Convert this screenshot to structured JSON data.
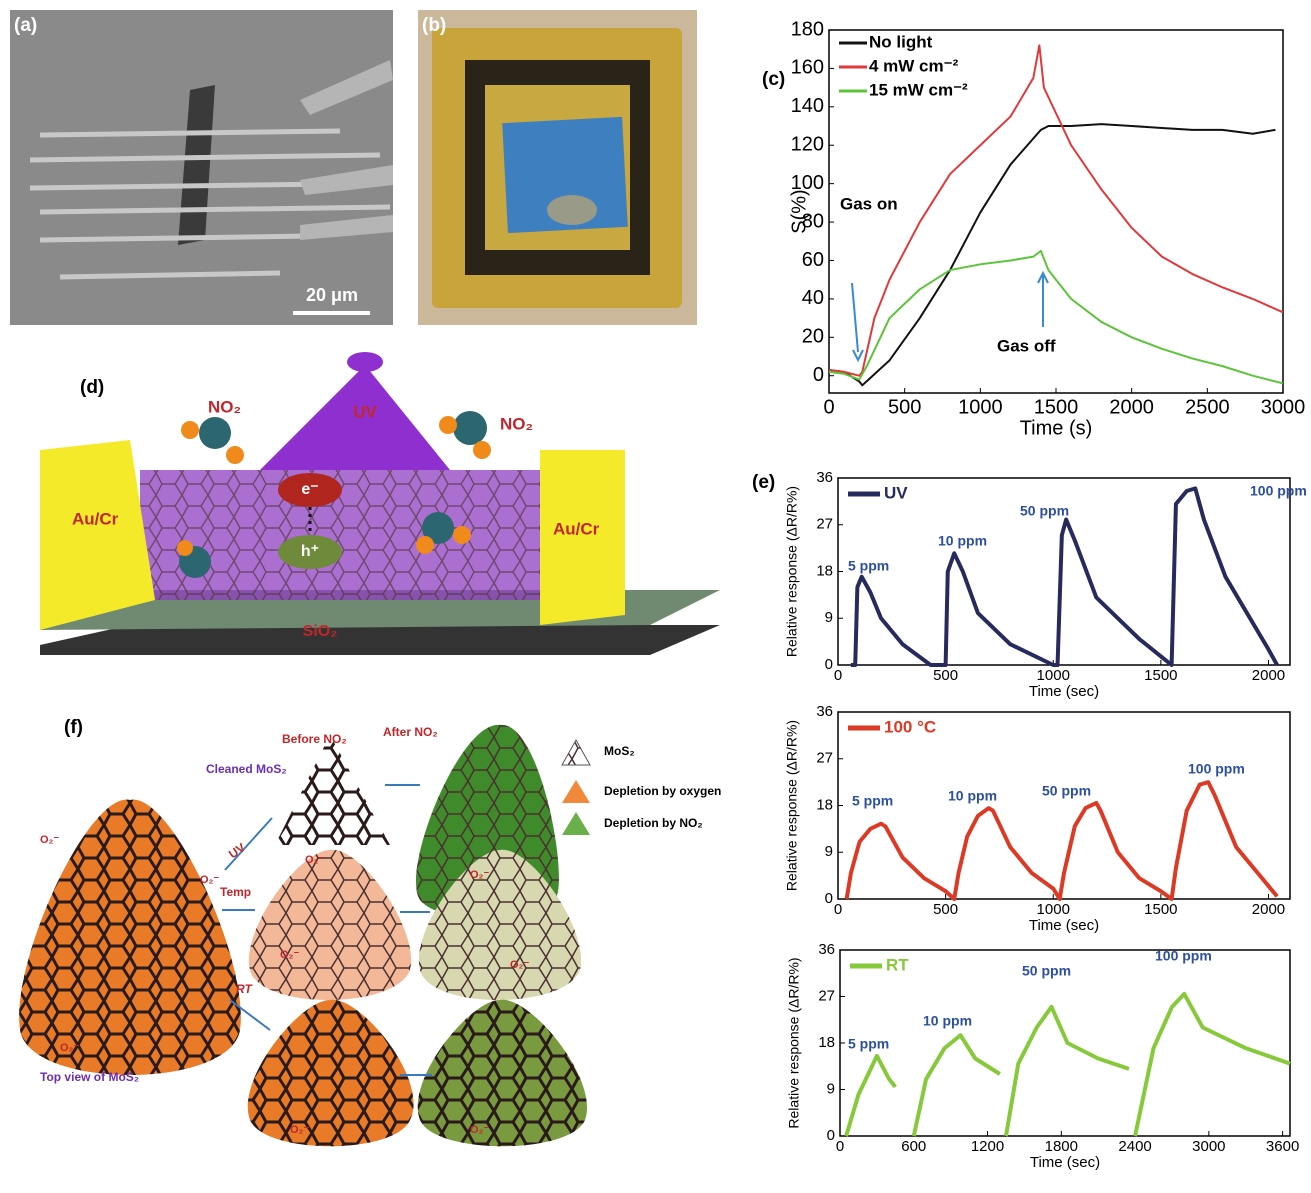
{
  "figure": {
    "a": {
      "label": "(a)",
      "scale": "20 μm"
    },
    "b": {
      "label": "(b)"
    },
    "d": {
      "label": "(d)",
      "texts": [
        "NO₂",
        "NO₂",
        "UV",
        "Au/Cr",
        "Au/Cr",
        "e⁻",
        "h⁺",
        "SiO₂"
      ]
    },
    "f": {
      "label": "(f)",
      "texts": [
        "Before NO₂",
        "After NO₂",
        "Cleaned MoS₂",
        "MoS₂",
        "Depletion by oxygen",
        "Depletion by NO₂",
        "UV",
        "Temp",
        "RT",
        "Top view of MoS₂"
      ],
      "oxygen": "O₂⁻"
    }
  },
  "chart_data": [
    {
      "type": "line",
      "panel": "(c)",
      "xlabel": "Time (s)",
      "ylabel": "S(%)",
      "xlim": [
        0,
        3000
      ],
      "ylim": [
        -9,
        180
      ],
      "xticks": [
        0,
        500,
        1000,
        1500,
        2000,
        2500,
        3000
      ],
      "yticks": [
        0,
        20,
        40,
        60,
        80,
        100,
        120,
        140,
        160,
        180
      ],
      "annotations": [
        "Gas on",
        "Gas off"
      ],
      "series": [
        {
          "name": "No light",
          "color": "#111111",
          "x": [
            0,
            100,
            200,
            220,
            400,
            600,
            800,
            1000,
            1200,
            1400,
            1450,
            1600,
            1800,
            2000,
            2200,
            2400,
            2600,
            2800,
            2950
          ],
          "values": [
            3,
            2,
            -3,
            -5,
            8,
            30,
            55,
            85,
            110,
            128,
            130,
            130,
            131,
            130,
            129,
            128,
            128,
            126,
            128
          ]
        },
        {
          "name": "4 mW cm⁻²",
          "color": "#e0393b",
          "x": [
            0,
            100,
            200,
            220,
            300,
            400,
            600,
            800,
            1000,
            1200,
            1350,
            1390,
            1420,
            1600,
            1800,
            2000,
            2200,
            2400,
            2600,
            2800,
            3000
          ],
          "values": [
            3,
            2,
            0,
            2,
            30,
            50,
            80,
            105,
            120,
            135,
            155,
            172,
            150,
            120,
            97,
            77,
            62,
            53,
            46,
            40,
            33
          ]
        },
        {
          "name": "15 mW cm⁻²",
          "color": "#5cc43a",
          "x": [
            0,
            100,
            200,
            250,
            400,
            600,
            800,
            1000,
            1200,
            1350,
            1400,
            1450,
            1600,
            1800,
            2000,
            2200,
            2400,
            2600,
            2800,
            3000
          ],
          "values": [
            2,
            1,
            -2,
            5,
            30,
            45,
            55,
            58,
            60,
            62,
            65,
            55,
            40,
            28,
            20,
            14,
            9,
            5,
            0,
            -4
          ]
        }
      ]
    },
    {
      "type": "line",
      "panel": "(e)",
      "xlabel": "Time (sec)",
      "ylabel": "Relative response (ΔR/R%)",
      "xlim": [
        0,
        2100
      ],
      "ylim": [
        0,
        36
      ],
      "xticks": [
        0,
        500,
        1000,
        1500,
        2000
      ],
      "yticks": [
        0,
        9,
        18,
        27,
        36
      ],
      "annotations": [
        "5 ppm",
        "10 ppm",
        "50 ppm",
        "100 ppm"
      ],
      "series": [
        {
          "name": "UV",
          "color": "#272a5c",
          "x": [
            60,
            80,
            90,
            110,
            150,
            200,
            300,
            430,
            500,
            510,
            540,
            580,
            650,
            800,
            1000,
            1020,
            1040,
            1060,
            1100,
            1200,
            1400,
            1520,
            1550,
            1570,
            1620,
            1660,
            1700,
            1800,
            1900,
            2000,
            2040
          ],
          "values": [
            0,
            0,
            15,
            17,
            14,
            9,
            4,
            0,
            0,
            18,
            21.5,
            18,
            10,
            4,
            0,
            0,
            25,
            28,
            24,
            13,
            5,
            1,
            0,
            31,
            33.5,
            34,
            28,
            17,
            10,
            3,
            0
          ]
        }
      ]
    },
    {
      "type": "line",
      "xlabel": "Time (sec)",
      "ylabel": "Relative response (ΔR/R%)",
      "xlim": [
        0,
        2100
      ],
      "ylim": [
        0,
        36
      ],
      "xticks": [
        0,
        500,
        1000,
        1500,
        2000
      ],
      "yticks": [
        0,
        9,
        18,
        27,
        36
      ],
      "annotations": [
        "5 ppm",
        "10 ppm",
        "50 ppm",
        "100 ppm"
      ],
      "series": [
        {
          "name": "100 °C",
          "color": "#dc3a25",
          "x": [
            40,
            60,
            100,
            150,
            200,
            220,
            300,
            400,
            500,
            540,
            560,
            600,
            650,
            700,
            720,
            800,
            900,
            1000,
            1030,
            1050,
            1100,
            1150,
            1200,
            1220,
            1300,
            1400,
            1500,
            1550,
            1570,
            1620,
            1680,
            1720,
            1750,
            1850,
            1950,
            2040
          ],
          "values": [
            0,
            5,
            11,
            13.5,
            14.5,
            14,
            8,
            4,
            1.5,
            0,
            5,
            12,
            16,
            17.5,
            17,
            10,
            5,
            2,
            0,
            5,
            14,
            17.5,
            18.5,
            17,
            9,
            4,
            1.5,
            0,
            6,
            17,
            22,
            22.5,
            20,
            10,
            5,
            0.5
          ]
        }
      ]
    },
    {
      "type": "line",
      "xlabel": "Time (sec)",
      "ylabel": "Relative response (ΔR/R%)",
      "xlim": [
        0,
        3660
      ],
      "ylim": [
        0,
        36
      ],
      "xticks": [
        0,
        600,
        1200,
        1800,
        2400,
        3000,
        3600
      ],
      "yticks": [
        0,
        9,
        18,
        27,
        36
      ],
      "annotations": [
        "5 ppm",
        "10 ppm",
        "50 ppm",
        "100 ppm"
      ],
      "series": [
        {
          "name": "RT",
          "color": "#86c93a",
          "x": [
            50,
            150,
            250,
            300,
            400,
            450,
            500,
            600,
            700,
            850,
            980,
            1100,
            1300,
            1320,
            1350,
            1450,
            1600,
            1720,
            1850,
            2100,
            2350,
            2370,
            2400,
            2550,
            2700,
            2800,
            2950,
            3300,
            3660
          ],
          "values": [
            0,
            8,
            13,
            15.5,
            11,
            9.5,
            null,
            0,
            11,
            17,
            19.5,
            15,
            12,
            null,
            0,
            14,
            21,
            25,
            18,
            15,
            13,
            null,
            0,
            17,
            25,
            27.5,
            21,
            17,
            14
          ]
        }
      ]
    }
  ]
}
